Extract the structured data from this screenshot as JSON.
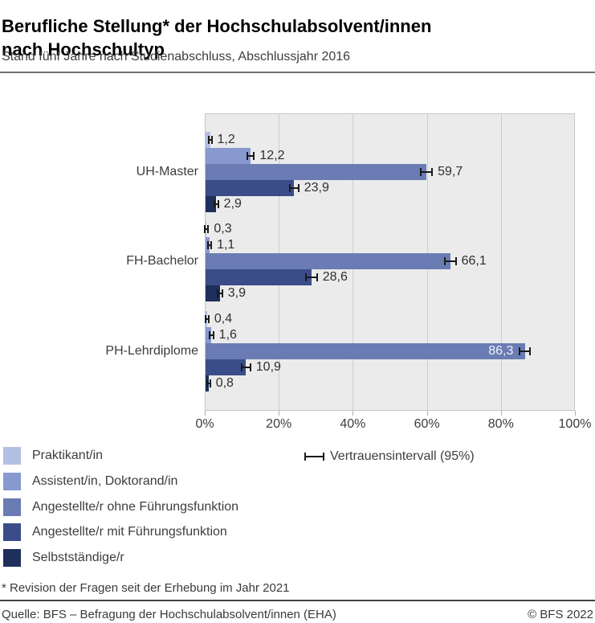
{
  "header": {
    "title_line1": "Berufliche Stellung* der Hochschulabsolvent/innen",
    "title_line2": "nach Hochschultyp",
    "subtitle": "Stand fünf Jahre nach Studienabschluss, Abschlussjahr 2016"
  },
  "chart_data": {
    "type": "bar",
    "orientation": "horizontal",
    "unit": "%",
    "xlim": [
      0,
      100
    ],
    "x_ticks": [
      "0%",
      "20%",
      "40%",
      "60%",
      "80%",
      "100%"
    ],
    "x_tick_values": [
      0,
      20,
      40,
      60,
      80,
      100
    ],
    "grid": true,
    "plot_background": "#ebebeb",
    "gridline_color": "#cecece",
    "error_bar_color": "#1a1a1a",
    "categories": [
      "UH-Master",
      "FH-Bachelor",
      "PH-Lehrdiplome"
    ],
    "series": [
      {
        "name": "Praktikant/in",
        "color": "#b3c0e3",
        "values": [
          1.2,
          0.3,
          0.4
        ],
        "ci95": [
          0.3,
          0.2,
          0.3
        ]
      },
      {
        "name": "Assistent/in, Doktorand/in",
        "color": "#8799cf",
        "values": [
          12.2,
          1.1,
          1.6
        ],
        "ci95": [
          0.9,
          0.4,
          0.5
        ]
      },
      {
        "name": "Angestellte/r ohne Führungsfunktion",
        "color": "#6a7cb3",
        "values": [
          59.7,
          66.1,
          86.3
        ],
        "ci95": [
          1.5,
          1.5,
          1.4
        ]
      },
      {
        "name": "Angestellte/r mit Führungsfunktion",
        "color": "#3a4d89",
        "values": [
          23.9,
          28.6,
          10.9
        ],
        "ci95": [
          1.2,
          1.5,
          1.2
        ]
      },
      {
        "name": "Selbstständige/r",
        "color": "#1e2f5b",
        "values": [
          2.9,
          3.9,
          0.8
        ],
        "ci95": [
          0.5,
          0.6,
          0.4
        ]
      }
    ],
    "ci_legend_label": "Vertrauensintervall (95%)",
    "decimal_separator": ","
  },
  "footer": {
    "footnote": "* Revision der Fragen seit der Erhebung im Jahr 2021",
    "source": "Quelle: BFS – Befragung der Hochschulabsolvent/innen (EHA)",
    "copyright": "© BFS 2022"
  }
}
